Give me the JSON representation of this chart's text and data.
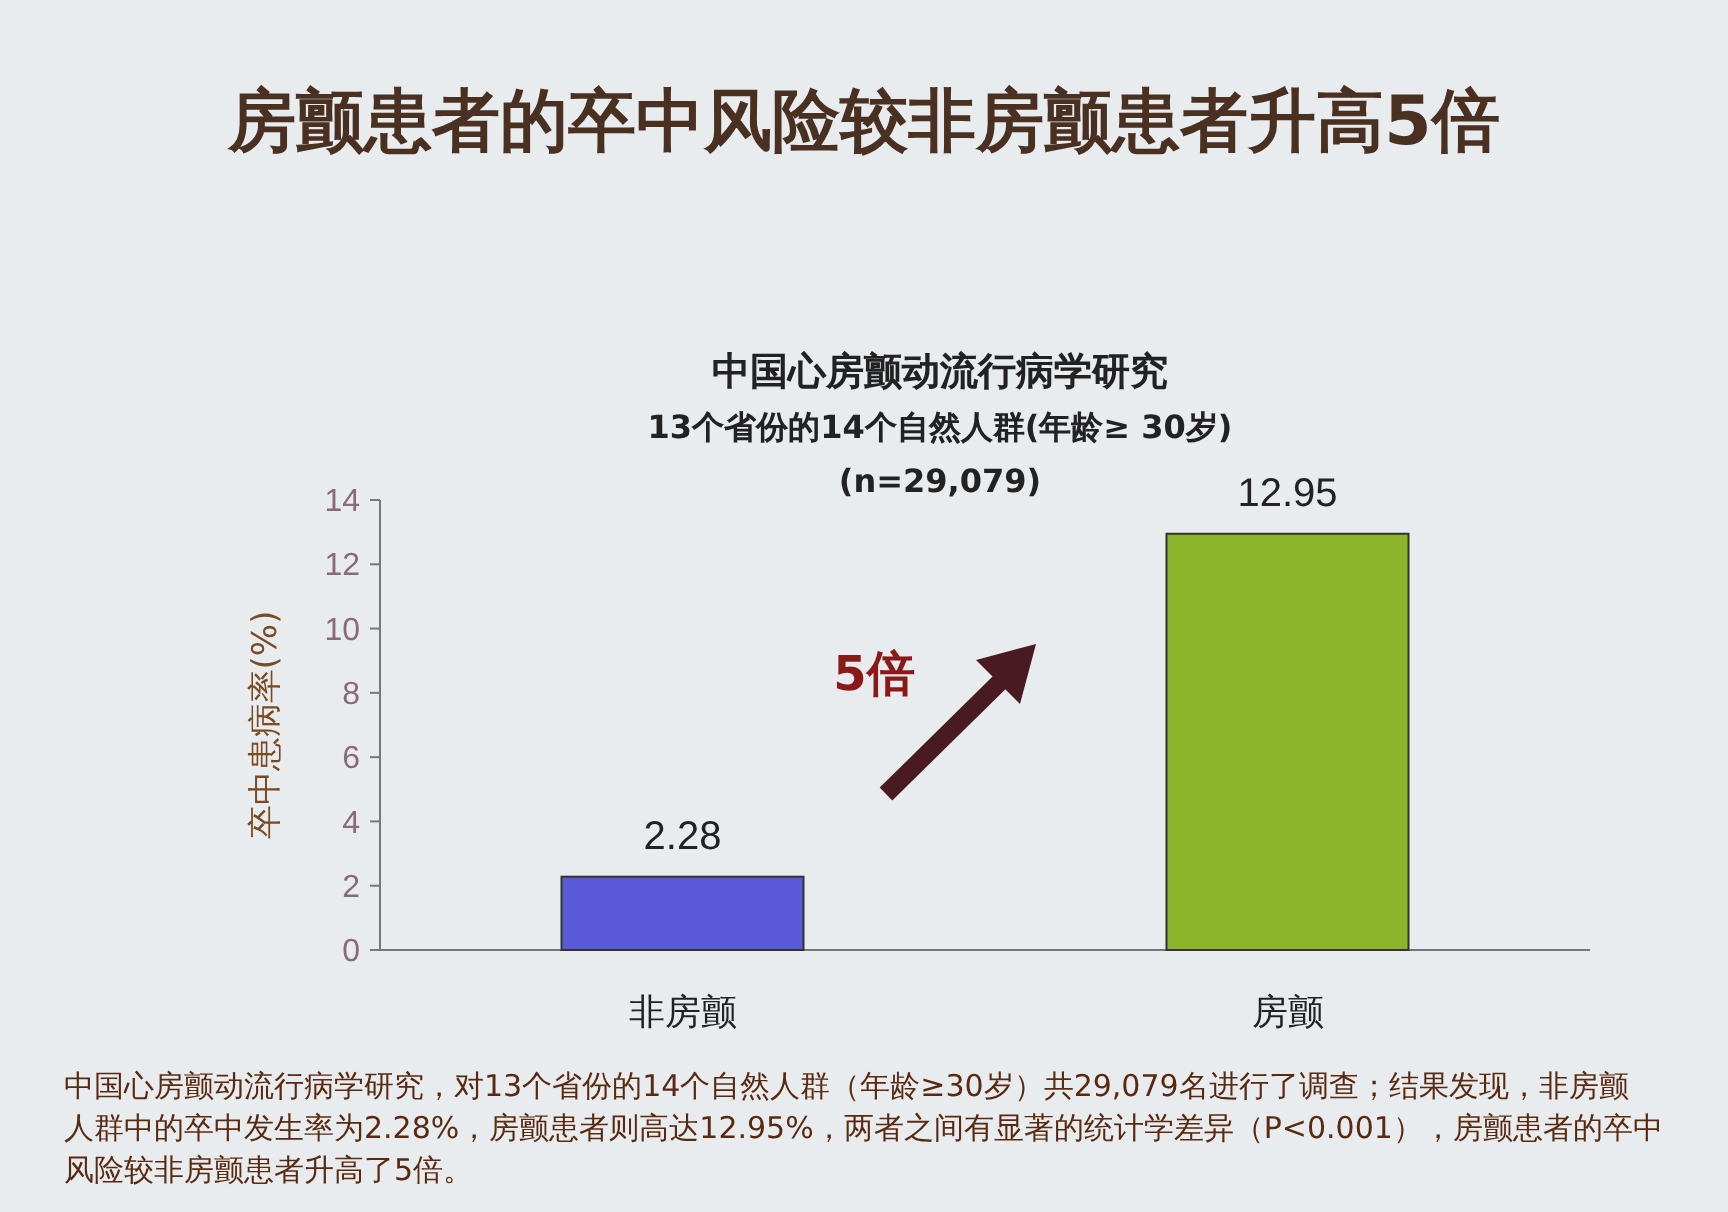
{
  "chart_data": {
    "type": "bar",
    "title": "房颤患者的卒中风险较非房颤患者升高5倍",
    "subtitle": "中国心房颤动流行病学研究\n13个省份的14个自然人群(年龄≥ 30岁)\n(n=29,079)",
    "ylabel": "卒中患病率(%)",
    "categories": [
      "非房颤",
      "房颤"
    ],
    "values": [
      2.28,
      12.95
    ],
    "colors": [
      "#5a5ad8",
      "#8cb52c"
    ],
    "ylim": [
      0,
      14
    ],
    "yticks": [
      0,
      2,
      4,
      6,
      8,
      10,
      12,
      14
    ],
    "data_labels": true,
    "grid": false,
    "annotations": [
      "5倍",
      "中国心房颤动流行病学研究，对13个省份的14个自然人群（年龄≥30岁）共29,079名进行了调查；结果发现，非房颤人群中的卒中发生率为2.28%，房颤患者则高达12.95%，两者之间有显著的统计学差异（P<0.001），房颤患者的卒中风险较非房颤患者升高了5倍。"
    ]
  }
}
